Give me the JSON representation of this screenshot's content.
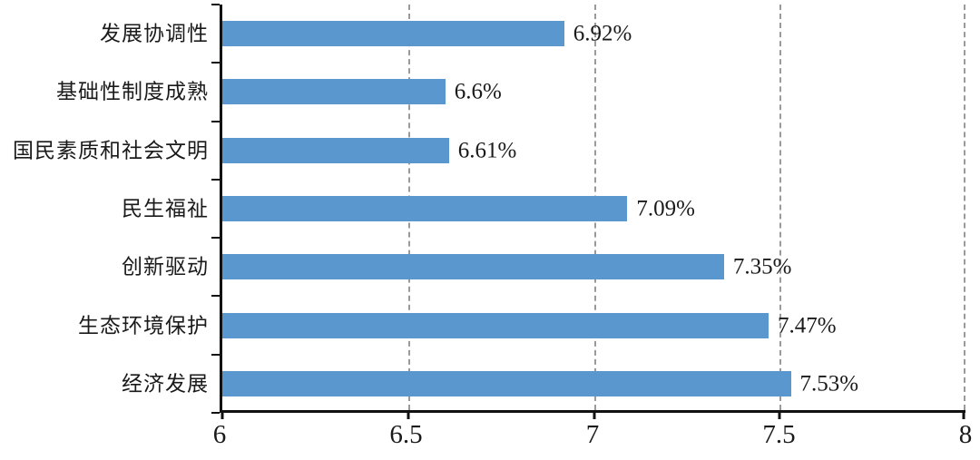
{
  "chart_data": {
    "type": "bar",
    "orientation": "horizontal",
    "title": "",
    "categories": [
      "发展协调性",
      "基础性制度成熟",
      "国民素质和社会文明",
      "民生福祉",
      "创新驱动",
      "生态环境保护",
      "经济发展"
    ],
    "values": [
      6.92,
      6.6,
      6.61,
      7.09,
      7.35,
      7.47,
      7.53
    ],
    "value_labels": [
      "6.92%",
      "6.6%",
      "6.61%",
      "7.09%",
      "7.35%",
      "7.47%",
      "7.53%"
    ],
    "xlim": [
      6,
      8
    ],
    "x_ticks": [
      {
        "value": 6,
        "label": "6"
      },
      {
        "value": 6.5,
        "label": "6.5"
      },
      {
        "value": 7,
        "label": "7"
      },
      {
        "value": 7.5,
        "label": "7.5"
      },
      {
        "value": 8,
        "label": "8"
      }
    ],
    "gridlines": [
      6.5,
      7,
      7.5,
      8
    ],
    "grid_style": "dashed",
    "legend": "none",
    "bar_color": "#5B97CF",
    "axis_color": "#111111",
    "gridline_color": "#9a9a9a",
    "text_color": "#1a1a1a"
  }
}
